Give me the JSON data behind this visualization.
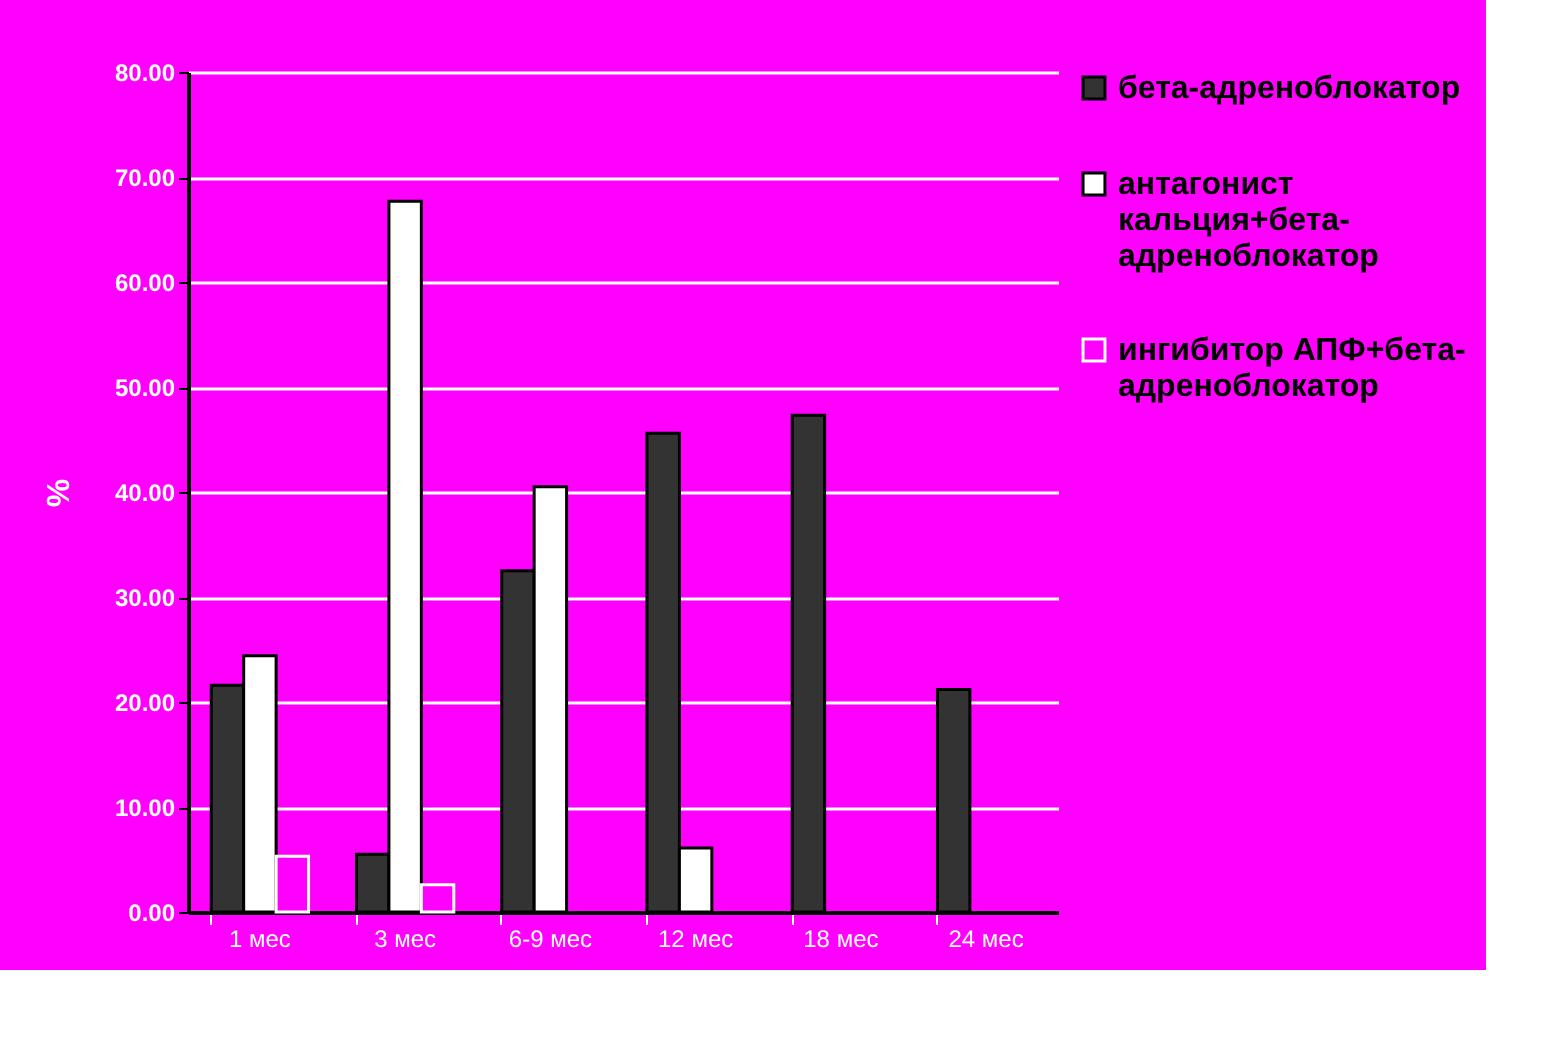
{
  "chart_data": {
    "type": "bar",
    "ylabel": "%",
    "categories": [
      "1 мес",
      "3 мес",
      "6-9 мес",
      "12 мес",
      "18 мес",
      "24 мес"
    ],
    "series": [
      {
        "name": "бета-адреноблокатор",
        "color": "#333333",
        "values": [
          21.6,
          5.5,
          32.5,
          45.6,
          47.3,
          21.2
        ]
      },
      {
        "name": "антагонист кальция+бета-адреноблокатор",
        "color": "#ffffff",
        "values": [
          24.4,
          67.7,
          40.5,
          6.1,
          null,
          null
        ]
      },
      {
        "name": "ингибитор АПФ+бета-адреноблокатор",
        "color": "#ff00ff",
        "values": [
          5.3,
          2.6,
          null,
          null,
          null,
          null
        ]
      }
    ],
    "ylim": [
      0,
      80
    ],
    "yticks": [
      {
        "value": 0,
        "label": "0.00"
      },
      {
        "value": 10,
        "label": "10.00"
      },
      {
        "value": 20,
        "label": "20.00"
      },
      {
        "value": 30,
        "label": "30.00"
      },
      {
        "value": 40,
        "label": "40.00"
      },
      {
        "value": 50,
        "label": "50.00"
      },
      {
        "value": 60,
        "label": "60.00"
      },
      {
        "value": 70,
        "label": "70.00"
      },
      {
        "value": 80,
        "label": "80.00"
      }
    ],
    "grid": "y",
    "legend": "right"
  }
}
